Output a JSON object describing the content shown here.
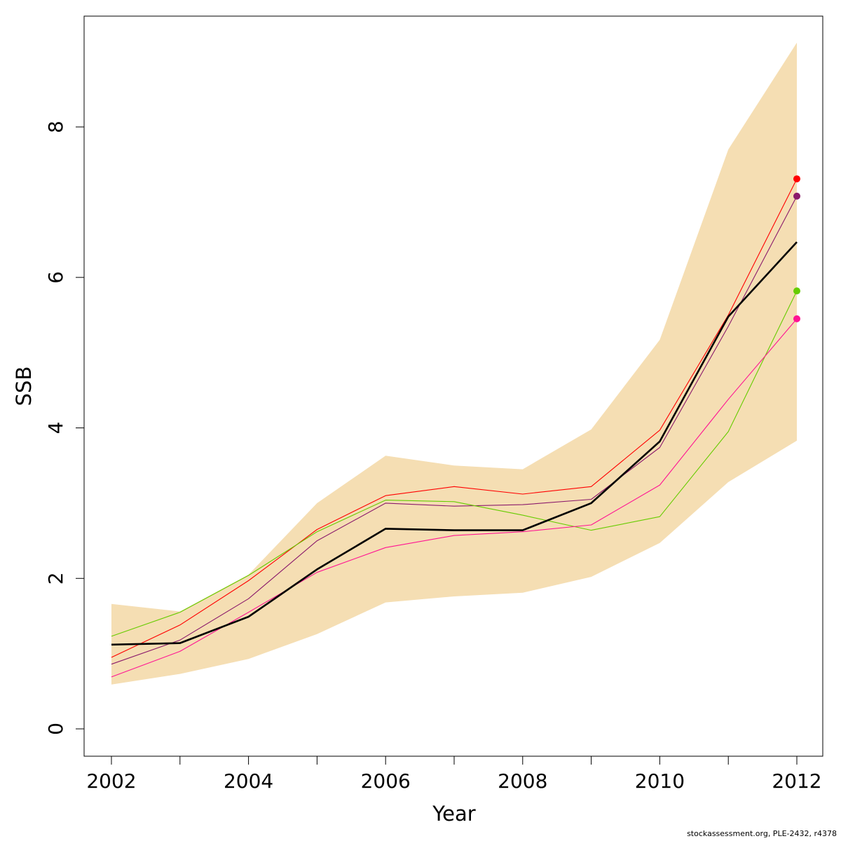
{
  "chart_data": {
    "type": "line",
    "xlabel": "Year",
    "ylabel": "SSB",
    "xlim": [
      2002,
      2012
    ],
    "ylim": [
      0,
      9.1
    ],
    "x_ticks": [
      "2002",
      "2004",
      "2006",
      "2008",
      "2010",
      "2012"
    ],
    "y_ticks": [
      "0",
      "2",
      "4",
      "6",
      "8"
    ],
    "grid": false,
    "colors": {
      "band": "#f5deb3",
      "main": "#000000",
      "red": "#ff0000",
      "purple": "#8b1a6b",
      "green": "#66cc00",
      "pink": "#ff1493"
    },
    "x": [
      2002,
      2003,
      2004,
      2005,
      2006,
      2007,
      2008,
      2009,
      2010,
      2011,
      2012
    ],
    "band_upper": [
      1.66,
      1.56,
      2.05,
      3.0,
      3.63,
      3.5,
      3.45,
      3.98,
      5.17,
      7.7,
      9.12
    ],
    "band_lower": [
      0.59,
      0.73,
      0.93,
      1.26,
      1.68,
      1.76,
      1.81,
      2.02,
      2.47,
      3.28,
      3.83
    ],
    "series": [
      {
        "key": "red",
        "values": [
          0.95,
          1.38,
          1.97,
          2.65,
          3.1,
          3.22,
          3.12,
          3.22,
          3.97,
          5.5,
          7.31
        ],
        "endpoint": true
      },
      {
        "key": "purple",
        "values": [
          0.86,
          1.18,
          1.73,
          2.5,
          3.0,
          2.96,
          2.98,
          3.05,
          3.74,
          5.35,
          7.08
        ],
        "endpoint": true
      },
      {
        "key": "green",
        "values": [
          1.23,
          1.55,
          2.04,
          2.62,
          3.04,
          3.02,
          2.84,
          2.64,
          2.82,
          3.95,
          5.82
        ],
        "endpoint": true
      },
      {
        "key": "pink",
        "values": [
          0.69,
          1.03,
          1.55,
          2.08,
          2.41,
          2.57,
          2.62,
          2.71,
          3.24,
          4.38,
          5.45
        ],
        "endpoint": true
      },
      {
        "key": "main",
        "values": [
          1.12,
          1.14,
          1.49,
          2.12,
          2.66,
          2.64,
          2.64,
          3.0,
          3.82,
          5.48,
          6.47
        ],
        "endpoint": false
      }
    ]
  },
  "footer": "stockassessment.org, PLE-2432, r4378"
}
